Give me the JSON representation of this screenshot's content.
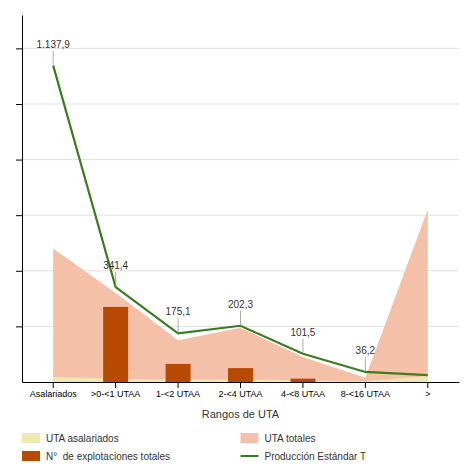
{
  "chart_data": {
    "type": "combo",
    "xlabel": "Rangos de UTA",
    "categories": [
      "Asalariados",
      ">0-<1 UTAA",
      "1-<2 UTAA",
      "2-<4 UTAA",
      "4-<8 UTAA",
      "8-<16 UTAA",
      ">"
    ],
    "series": [
      {
        "name": "UTA asalariados",
        "type": "area",
        "color": "#f0e8b0",
        "values": [
          18.0,
          12.0,
          8.0,
          10.0,
          5.0,
          3.0,
          22.0
        ]
      },
      {
        "name": "UTA totales",
        "type": "area",
        "color": "#f5c0a8",
        "values": [
          480.0,
          320.0,
          150.0,
          195.0,
          90.0,
          15.0,
          620.0
        ]
      },
      {
        "name": "N°  de explotaciones totales",
        "type": "bar",
        "color": "#b84a00",
        "values": [
          0,
          270.0,
          65.0,
          50.0,
          12.0,
          0,
          0
        ]
      },
      {
        "name": "Producción Estándar T",
        "type": "line",
        "color": "#3a7d1e",
        "values": [
          1137.9,
          341.4,
          175.1,
          202.3,
          101.5,
          36.2,
          25.0
        ],
        "data_labels": true,
        "value_labels": [
          "1.137,9",
          "341,4",
          "175,1",
          "202,3",
          "101,5",
          "36,2",
          null
        ]
      }
    ],
    "ylim": [
      0,
      1320
    ],
    "yticks": [
      200,
      400,
      600,
      800,
      1000,
      1200
    ],
    "grid": true,
    "tick_labels": "x",
    "legend": "bottom"
  }
}
